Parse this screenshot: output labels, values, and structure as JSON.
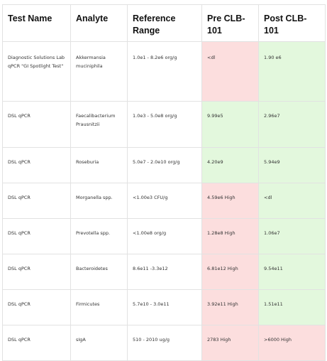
{
  "table": {
    "headers": [
      "Test Name",
      "Analyte",
      "Reference Range",
      "Pre CLB-101",
      "Post CLB-101"
    ],
    "rows": [
      {
        "test": "Diagnostic Solutions Lab qPCR \"GI Spotlight Test\"",
        "analyte": "Akkermansia muciniphila",
        "range": "1.0e1 - 8.2e6 org/g",
        "pre": "<dl",
        "post": "1.90 e6",
        "pre_status": "red",
        "post_status": "green"
      },
      {
        "test": "DSL qPCR",
        "analyte": "Faecalibacterium Prausnitzii",
        "range": "1.0e3 - 5.0e8 org/g",
        "pre": "9.99e5",
        "post": "2.96e7",
        "pre_status": "green",
        "post_status": "green"
      },
      {
        "test": "DSL qPCR",
        "analyte": "Roseburia",
        "range": "5.0e7 - 2.0e10 org/g",
        "pre": "4.20e9",
        "post": "5.94e9",
        "pre_status": "green",
        "post_status": "green"
      },
      {
        "test": "DSL qPCR",
        "analyte": "Morganella spp.",
        "range": "<1.00e3 CFU/g",
        "pre": "4.59e6 High",
        "post": "<dl",
        "pre_status": "red",
        "post_status": "green"
      },
      {
        "test": "DSL qPCR",
        "analyte": "Prevotella spp.",
        "range": "<1.00e8 org/g",
        "pre": "1.28e8 High",
        "post": "1.06e7",
        "pre_status": "red",
        "post_status": "green"
      },
      {
        "test": "DSL qPCR",
        "analyte": "Bacteroidetes",
        "range": "8.6e11 -3.3e12",
        "pre": "6.81e12 High",
        "post": "9.54e11",
        "pre_status": "red",
        "post_status": "green"
      },
      {
        "test": "DSL qPCR",
        "analyte": "Firmicutes",
        "range": "5.7e10 - 3.0e11",
        "pre": "3.92e11 High",
        "post": "1.51e11",
        "pre_status": "red",
        "post_status": "green"
      },
      {
        "test": "DSL qPCR",
        "analyte": "sIgA",
        "range": "510 - 2010 ug/g",
        "pre": "2783 High",
        "post": ">6000 High",
        "pre_status": "red",
        "post_status": "red"
      }
    ],
    "colors": {
      "red": "#fcdede",
      "green": "#e3f8dd",
      "border": "#e2e2e2"
    }
  }
}
